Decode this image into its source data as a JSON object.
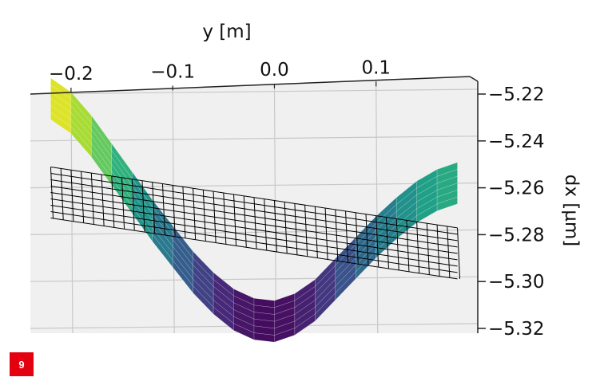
{
  "figure_badge": "9",
  "colors": {
    "pane": "#f0f0f0",
    "grid": "#c8c8c8",
    "axis": "#222222",
    "mesh": "#000000",
    "surface_colormap": "viridis"
  },
  "chart_data": {
    "type": "surface",
    "title": "",
    "ylabel_top": "y [m]",
    "zlabel_right": "dx [µm]",
    "y_ticks": [
      "−0.2",
      "−0.1",
      "0.0",
      "0.1"
    ],
    "y_tick_values": [
      -0.2,
      -0.1,
      0.0,
      0.1
    ],
    "z_ticks": [
      "−5.22",
      "−5.24",
      "−5.26",
      "−5.28",
      "−5.30",
      "−5.32"
    ],
    "z_tick_values": [
      -5.22,
      -5.24,
      -5.26,
      -5.28,
      -5.3,
      -5.32
    ],
    "ylim": [
      -0.24,
      0.2
    ],
    "zlim": [
      -5.32,
      -5.22
    ],
    "grid": true,
    "series": [
      {
        "style": "colored surface (viridis)",
        "y": [
          -0.22,
          -0.2,
          -0.18,
          -0.16,
          -0.14,
          -0.12,
          -0.1,
          -0.08,
          -0.06,
          -0.04,
          -0.02,
          0.0,
          0.02,
          0.04,
          0.06,
          0.08,
          0.1,
          0.12,
          0.14,
          0.16,
          0.18
        ],
        "z": [
          -5.222,
          -5.228,
          -5.238,
          -5.25,
          -5.262,
          -5.274,
          -5.285,
          -5.296,
          -5.305,
          -5.312,
          -5.316,
          -5.317,
          -5.314,
          -5.308,
          -5.299,
          -5.29,
          -5.281,
          -5.273,
          -5.266,
          -5.261,
          -5.258
        ]
      },
      {
        "style": "black wireframe plane",
        "y": [
          -0.22,
          0.18
        ],
        "z": [
          -5.262,
          -5.288
        ]
      }
    ]
  }
}
